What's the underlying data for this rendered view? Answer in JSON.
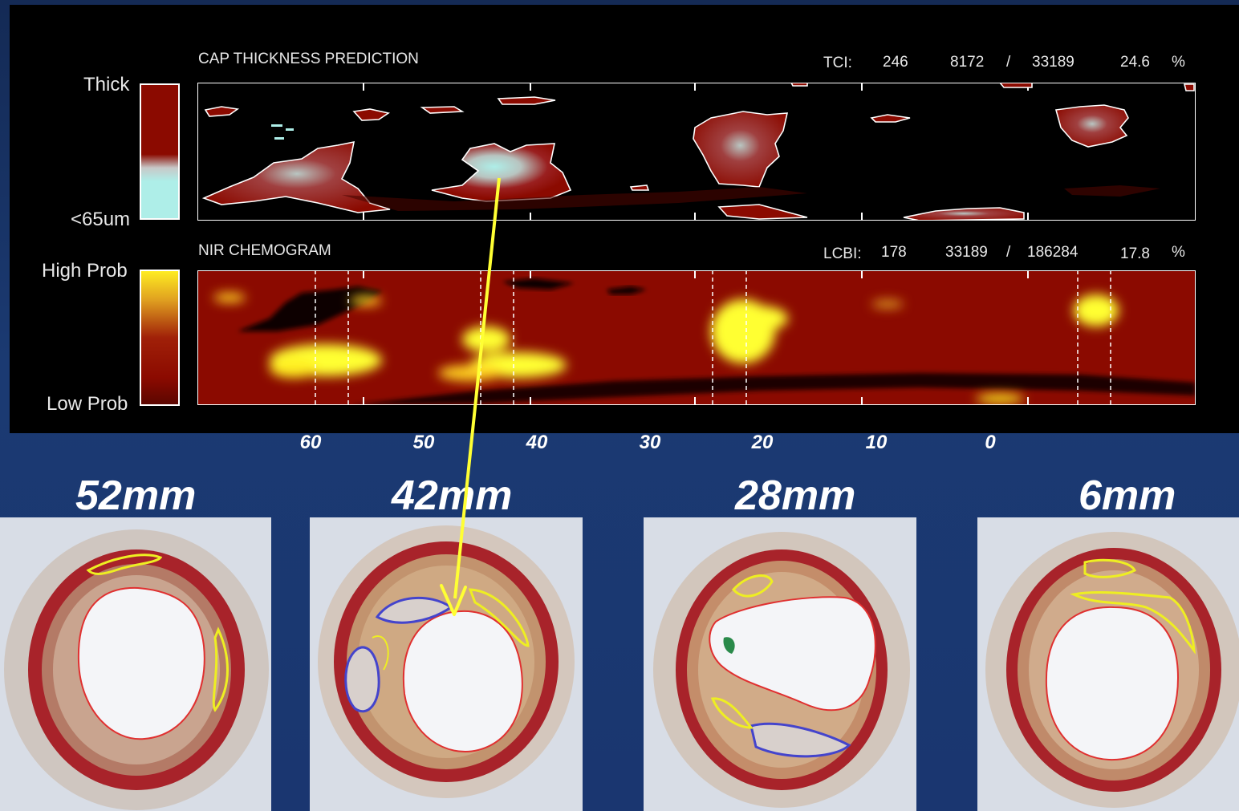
{
  "top_panel": {
    "title": "CAP THICKNESS PREDICTION",
    "scale_top": "Thick",
    "scale_bottom": "<65um",
    "stats": {
      "label": "TCI:",
      "v1": "246",
      "v2": "8172",
      "sep": "/",
      "v3": "33189",
      "pct": "24.6",
      "unit": "%"
    }
  },
  "bottom_panel": {
    "title": "NIR CHEMOGRAM",
    "scale_top": "High Prob",
    "scale_bottom": "Low Prob",
    "stats": {
      "label": "LCBI:",
      "v1": "178",
      "v2": "33189",
      "sep": "/",
      "v3": "186284",
      "pct": "17.8",
      "unit": "%"
    }
  },
  "axis_ticks": [
    "60",
    "50",
    "40",
    "30",
    "20",
    "10",
    "0"
  ],
  "sections": [
    {
      "label": "52mm"
    },
    {
      "label": "42mm"
    },
    {
      "label": "28mm"
    },
    {
      "label": "6mm"
    }
  ],
  "colors": {
    "background": "#1a3670",
    "panel": "#000000",
    "dark_red": "#8b0a00",
    "yellow": "#ffff33",
    "cyan": "#aeeee8",
    "arrow": "#ffff33",
    "lipid_outline": "#eeee22",
    "calcium_outline": "#4444cc",
    "lumen_outline": "#e03030"
  }
}
